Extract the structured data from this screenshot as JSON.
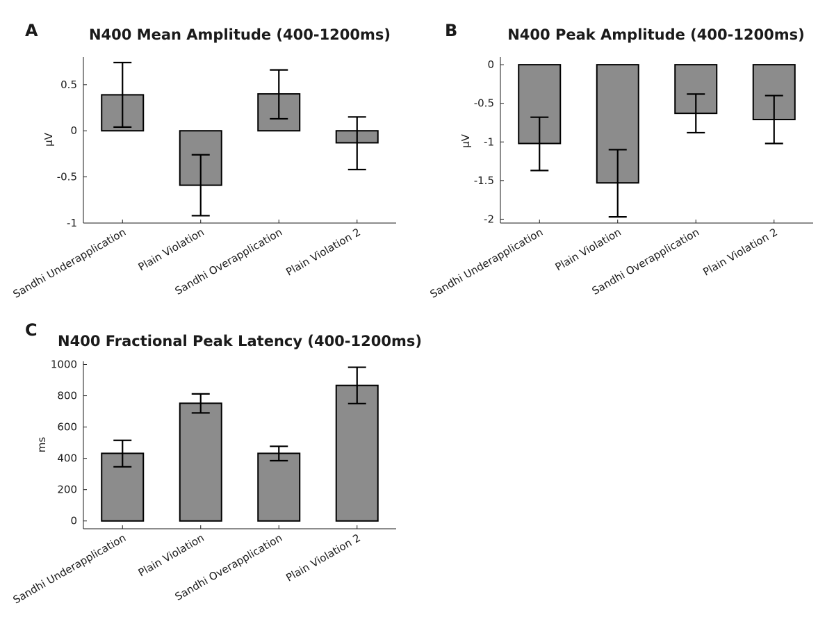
{
  "chart_data": [
    {
      "panel_label": "A",
      "type": "bar",
      "title": "N400 Mean Amplitude (400-1200ms)",
      "ylabel": "μV",
      "xlabel": "",
      "categories": [
        "Sandhi Underapplication",
        "Plain Violation",
        "Sandhi Overapplication",
        "Plain Violation 2"
      ],
      "values": [
        0.39,
        -0.59,
        0.4,
        -0.13
      ],
      "error_low": [
        0.04,
        -0.92,
        0.13,
        -0.42
      ],
      "error_high": [
        0.74,
        -0.26,
        0.66,
        0.15
      ],
      "ylim": [
        -1,
        0.8
      ],
      "yticks": [
        -1,
        -0.5,
        0,
        0.5
      ],
      "ytick_labels": [
        "-1",
        "-0.5",
        "0",
        "0.5"
      ],
      "grid": false,
      "colors": {
        "bar": "#8c8c8c",
        "edge": "#000000"
      }
    },
    {
      "panel_label": "B",
      "type": "bar",
      "title": "N400 Peak Amplitude (400-1200ms)",
      "ylabel": "μV",
      "xlabel": "",
      "categories": [
        "Sandhi Underapplication",
        "Plain Violation",
        "Sandhi Overapplication",
        "Plain Violation 2"
      ],
      "values": [
        -1.02,
        -1.53,
        -0.63,
        -0.71
      ],
      "error_low": [
        -1.37,
        -1.97,
        -0.88,
        -1.02
      ],
      "error_high": [
        -0.68,
        -1.1,
        -0.38,
        -0.4
      ],
      "ylim": [
        -2.05,
        0.1
      ],
      "yticks": [
        -2,
        -1.5,
        -1,
        -0.5,
        0
      ],
      "ytick_labels": [
        "-2",
        "-1.5",
        "-1",
        "-0.5",
        "0"
      ],
      "grid": false,
      "colors": {
        "bar": "#8c8c8c",
        "edge": "#000000"
      }
    },
    {
      "panel_label": "C",
      "type": "bar",
      "title": "N400 Fractional Peak Latency (400-1200ms)",
      "ylabel": "ms",
      "xlabel": "",
      "categories": [
        "Sandhi Underapplication",
        "Plain Violation",
        "Sandhi Overapplication",
        "Plain Violation 2"
      ],
      "values": [
        432,
        752,
        432,
        866
      ],
      "error_low": [
        346,
        690,
        385,
        750
      ],
      "error_high": [
        515,
        812,
        477,
        982
      ],
      "ylim": [
        -50,
        1020
      ],
      "yticks": [
        0,
        200,
        400,
        600,
        800,
        1000
      ],
      "ytick_labels": [
        "0",
        "200",
        "400",
        "600",
        "800",
        "1000"
      ],
      "grid": false,
      "colors": {
        "bar": "#8c8c8c",
        "edge": "#000000"
      }
    }
  ]
}
